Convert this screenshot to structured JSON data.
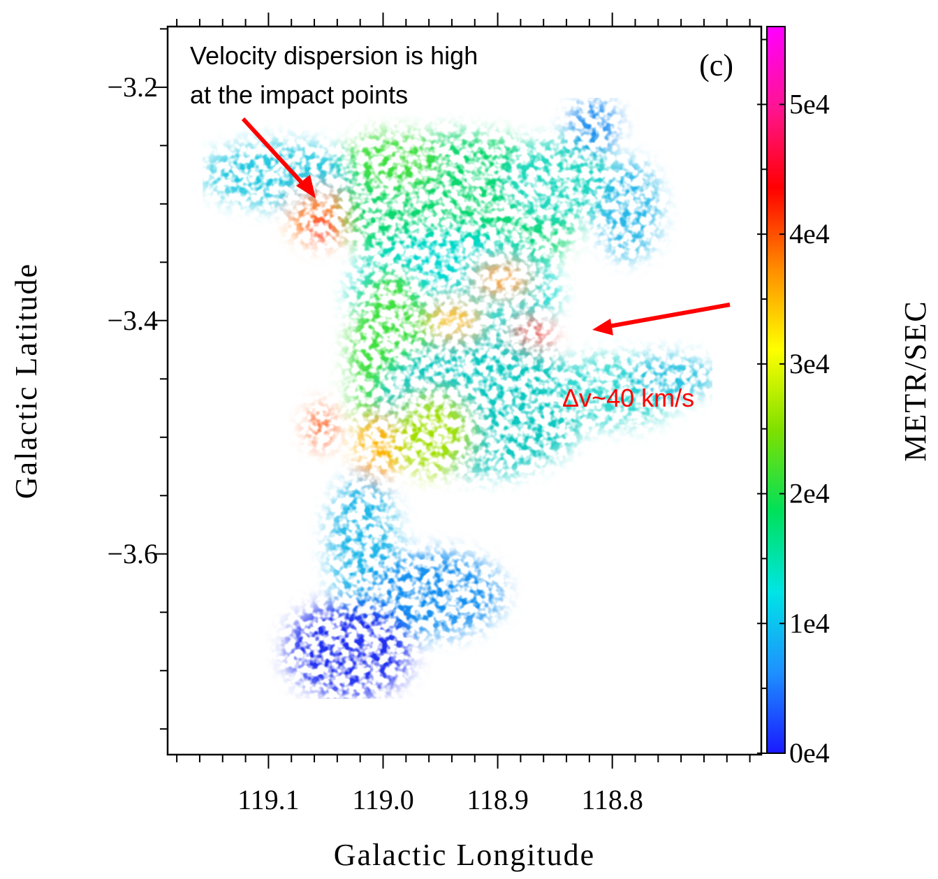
{
  "chart_data": {
    "type": "image",
    "title": "(c)",
    "xlabel": "Galactic Longitude",
    "ylabel": "Galactic Latitude",
    "xlim": [
      119.188,
      118.67
    ],
    "ylim": [
      -3.772,
      -3.148
    ],
    "xticks": [
      119.1,
      {
        "value": 119,
        "label": "119.0"
      },
      118.9,
      118.8
    ],
    "xminorticks": [
      119.18,
      119.16,
      119.14,
      119.12,
      119.08,
      119.06,
      119.04,
      119.02,
      118.98,
      118.96,
      118.94,
      118.92,
      118.88,
      118.86,
      118.84,
      118.82,
      118.78,
      118.76,
      118.74,
      118.72,
      118.7,
      118.68
    ],
    "yticks": [
      {
        "value": -3.2,
        "label": "−3.2"
      },
      {
        "value": -3.4,
        "label": "−3.4"
      },
      {
        "value": -3.6,
        "label": "−3.6"
      }
    ],
    "yminorticks": [
      -3.15,
      -3.25,
      -3.3,
      -3.35,
      -3.45,
      -3.5,
      -3.55,
      -3.65,
      -3.7,
      -3.75
    ],
    "colorbar": {
      "label": "METR/SEC",
      "lim": [
        0,
        56000
      ],
      "ticks": [
        {
          "value": 0,
          "label": "0e4"
        },
        {
          "value": 10000,
          "label": "1e4"
        },
        {
          "value": 20000,
          "label": "2e4"
        },
        {
          "value": 30000,
          "label": "3e4"
        },
        {
          "value": 40000,
          "label": "4e4"
        },
        {
          "value": 50000,
          "label": "5e4"
        }
      ],
      "minorticks": [
        5000,
        15000,
        25000,
        35000,
        45000,
        55000
      ],
      "colors": [
        "#1a1aff",
        "#1e90ff",
        "#00e5e5",
        "#00e05a",
        "#7fe000",
        "#ffff00",
        "#ff8c00",
        "#ff0000",
        "#ff1493",
        "#ff00ff"
      ]
    },
    "annotations": [
      {
        "text": "Velocity dispersion is high"
      },
      {
        "text": "at the impact points"
      },
      {
        "text": "Δv~40 km/s"
      }
    ]
  }
}
